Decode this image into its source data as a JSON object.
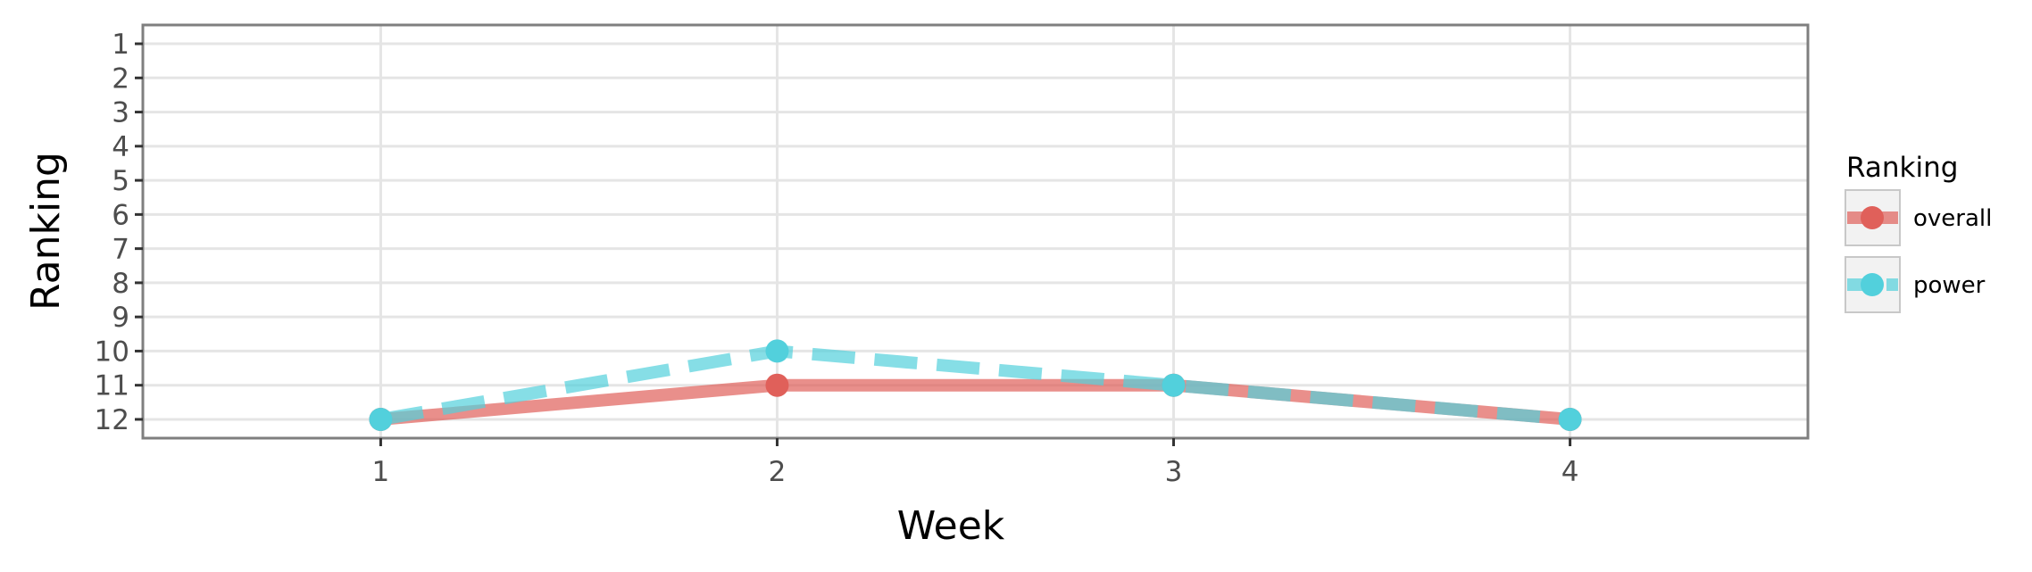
{
  "chart_data": {
    "type": "line",
    "xlabel": "Week",
    "ylabel": "Ranking",
    "x": [
      1,
      2,
      3,
      4
    ],
    "x_ticks": [
      "1",
      "2",
      "3",
      "4"
    ],
    "xlim": [
      0.4,
      4.6
    ],
    "y_ticks": [
      "1",
      "2",
      "3",
      "4",
      "5",
      "6",
      "7",
      "8",
      "9",
      "10",
      "11",
      "12"
    ],
    "ylim": [
      12.55,
      0.45
    ],
    "y_reversed": true,
    "grid": true,
    "legend": {
      "title": "Ranking",
      "position": "right"
    },
    "series": [
      {
        "name": "overall",
        "values": [
          12,
          11,
          11,
          12
        ],
        "color": "#e0605a",
        "line_style": "solid"
      },
      {
        "name": "power",
        "values": [
          12,
          10,
          11,
          12
        ],
        "color": "#52d0dc",
        "line_style": "dashed"
      }
    ]
  }
}
